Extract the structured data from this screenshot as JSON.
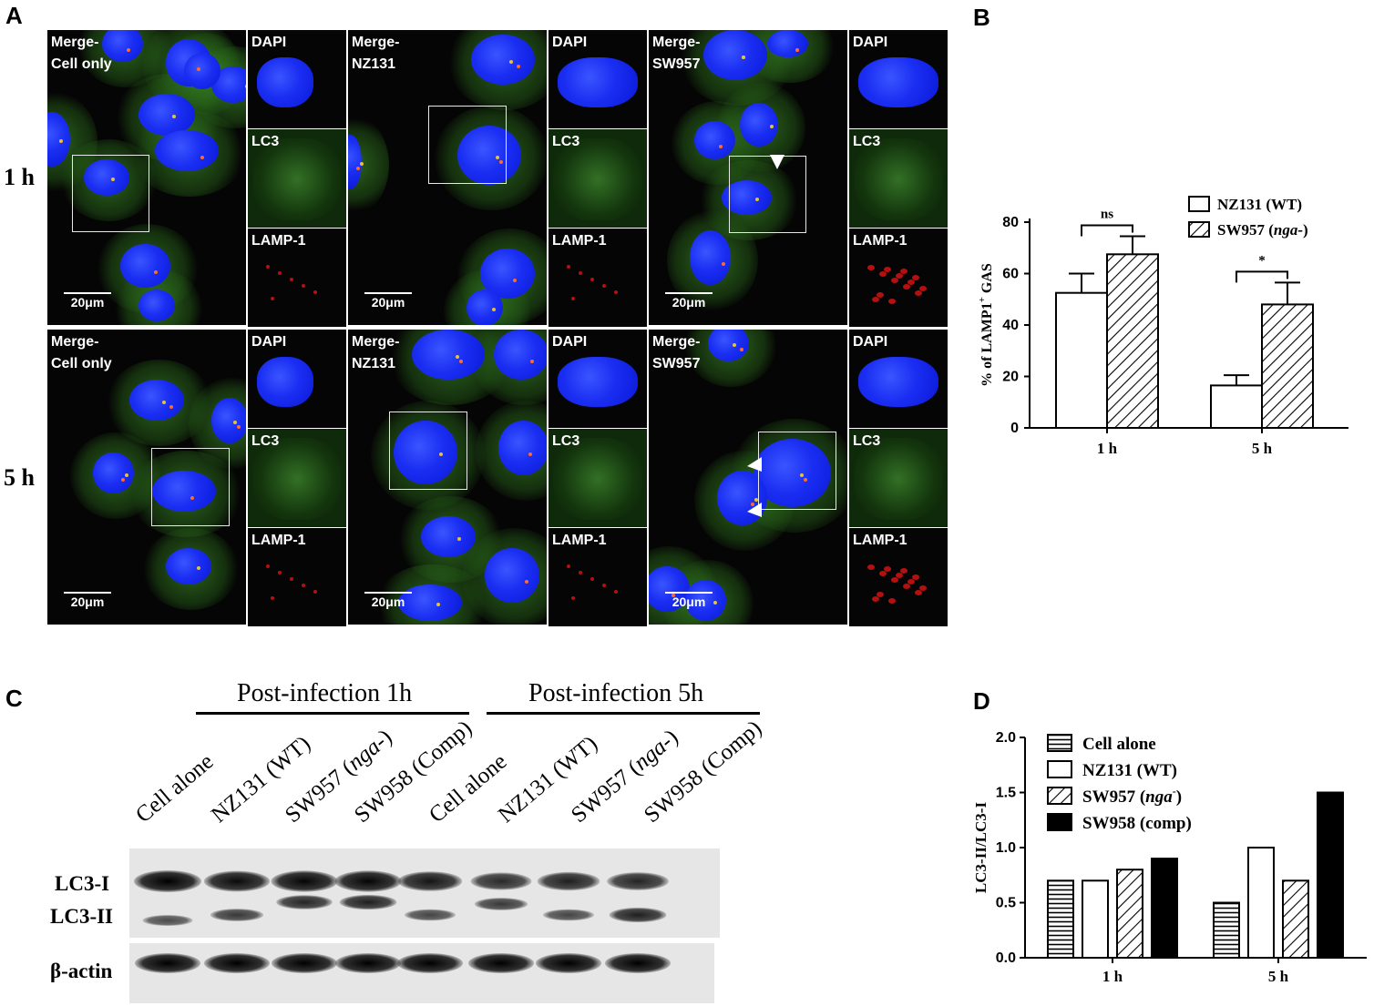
{
  "panels": {
    "a": "A",
    "b": "B",
    "c": "C",
    "d": "D"
  },
  "panel_a": {
    "row_labels": [
      "1 h",
      "5 h"
    ],
    "side_labels": [
      "DAPI",
      "LC3",
      "LAMP-1"
    ],
    "scale": "20μm",
    "groups": [
      {
        "merge_label": "Merge-\nCell only"
      },
      {
        "merge_label": "Merge-\nNZ131"
      },
      {
        "merge_label": "Merge-\nSW957"
      }
    ]
  },
  "chart_b": {
    "type": "bar",
    "categories": [
      "1 h",
      "5 h"
    ],
    "series": [
      {
        "name": "NZ131 (WT)",
        "values": [
          52.5,
          16.5
        ],
        "errors": [
          7.5,
          4
        ],
        "pattern": "none"
      },
      {
        "name": "SW957 (",
        "name_italic": "nga-",
        "name_end": ")",
        "values": [
          67.5,
          48
        ],
        "errors": [
          7,
          8.5
        ],
        "pattern": "hatch"
      }
    ],
    "ylabel_parts": [
      "% of LAMP1",
      "+",
      " GAS"
    ],
    "yticks": [
      0,
      20,
      40,
      60,
      80
    ],
    "ylim": [
      0,
      85
    ],
    "significance": [
      "ns",
      "*"
    ],
    "legend": "top-right"
  },
  "chart_data": [
    {
      "type": "bar",
      "panel": "B",
      "categories": [
        "1 h",
        "5 h"
      ],
      "series": [
        {
          "name": "NZ131 (WT)",
          "values": [
            52.5,
            16.5
          ],
          "error": [
            7.5,
            4
          ]
        },
        {
          "name": "SW957 (nga-)",
          "values": [
            67.5,
            48
          ],
          "error": [
            7,
            8.5
          ]
        }
      ],
      "ylabel": "% of LAMP1+ GAS",
      "ylim": [
        0,
        85
      ],
      "annotations": [
        "ns",
        "*"
      ]
    },
    {
      "type": "bar",
      "panel": "D",
      "categories": [
        "1 h",
        "5 h"
      ],
      "series": [
        {
          "name": "Cell alone",
          "values": [
            0.7,
            0.5
          ]
        },
        {
          "name": "NZ131 (WT)",
          "values": [
            0.7,
            1.0
          ]
        },
        {
          "name": "SW957 (nga-)",
          "values": [
            0.8,
            0.7
          ]
        },
        {
          "name": "SW958 (comp)",
          "values": [
            0.9,
            1.5
          ]
        }
      ],
      "ylabel": "LC3-II/LC3-I",
      "ylim": [
        0,
        2.0
      ]
    }
  ],
  "panel_c": {
    "headers": [
      "Post-infection 1h",
      "Post-infection 5h"
    ],
    "lanes": [
      {
        "pre": "Cell alone",
        "it": "",
        "post": ""
      },
      {
        "pre": "NZ131 (WT)",
        "it": "",
        "post": ""
      },
      {
        "pre": "SW957 (",
        "it": "nga-",
        "post": ")"
      },
      {
        "pre": "SW958 (Comp)",
        "it": "",
        "post": ""
      },
      {
        "pre": "Cell alone",
        "it": "",
        "post": ""
      },
      {
        "pre": "NZ131 (WT)",
        "it": "",
        "post": ""
      },
      {
        "pre": "SW957 (",
        "it": "nga-",
        "post": ")"
      },
      {
        "pre": "SW958 (Comp)",
        "it": "",
        "post": ""
      }
    ],
    "row_labels": [
      "LC3-I",
      "LC3-II",
      "β-actin"
    ],
    "band_intensity": {
      "lc3_i": [
        1.0,
        0.9,
        0.95,
        0.95,
        0.8,
        0.6,
        0.7,
        0.65
      ],
      "lc3_ii": [
        0.5,
        0.65,
        0.8,
        0.85,
        0.55,
        0.65,
        0.55,
        0.85
      ],
      "actin": [
        1,
        1,
        1,
        1,
        1,
        1,
        1,
        1
      ]
    }
  },
  "chart_d": {
    "type": "bar",
    "categories": [
      "1 h",
      "5 h"
    ],
    "series": [
      {
        "name": "Cell alone",
        "values": [
          0.7,
          0.5
        ],
        "pattern": "hlines"
      },
      {
        "name": "NZ131 (WT)",
        "values": [
          0.7,
          1.0
        ],
        "pattern": "none"
      },
      {
        "name": "SW957 (",
        "name_italic": "nga",
        "name_sup": "-",
        "name_end": ")",
        "values": [
          0.8,
          0.7
        ],
        "pattern": "hatch"
      },
      {
        "name": "SW958 (comp)",
        "values": [
          0.9,
          1.5
        ],
        "pattern": "solid"
      }
    ],
    "ylabel": "LC3-II/LC3-I",
    "yticks": [
      "0.0",
      "0.5",
      "1.0",
      "1.5",
      "2.0"
    ],
    "ylim": [
      0,
      2.0
    ],
    "legend": "top-left"
  }
}
